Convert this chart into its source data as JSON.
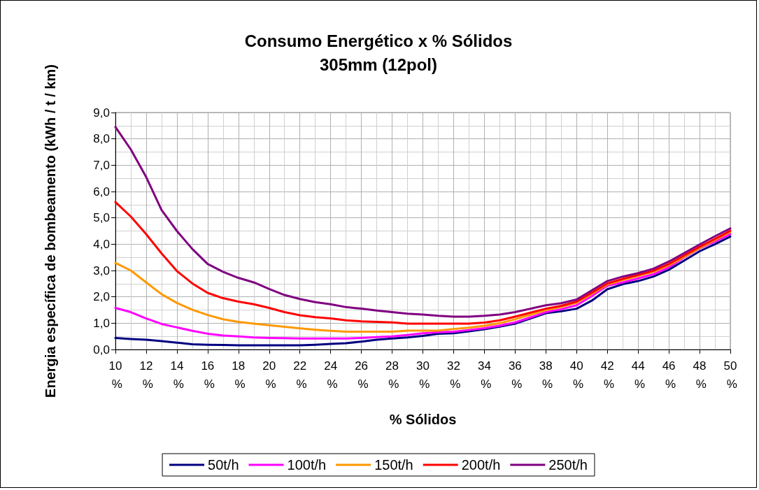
{
  "chart_data": {
    "type": "line",
    "title": "Consumo Energético x % Sólidos",
    "subtitle": "305mm (12pol)",
    "xlabel": "% Sólidos",
    "ylabel": "Energia específica de bombeamento (kWh / t / km)",
    "x": [
      10,
      11,
      12,
      13,
      14,
      15,
      16,
      17,
      18,
      19,
      20,
      21,
      22,
      23,
      24,
      25,
      26,
      27,
      28,
      29,
      30,
      31,
      32,
      33,
      34,
      35,
      36,
      37,
      38,
      39,
      40,
      41,
      42,
      43,
      44,
      45,
      46,
      47,
      48,
      49,
      50
    ],
    "series": [
      {
        "name": "50t/h",
        "color": "#000080",
        "values": [
          0.44,
          0.4,
          0.37,
          0.32,
          0.26,
          0.2,
          0.18,
          0.17,
          0.16,
          0.16,
          0.16,
          0.16,
          0.16,
          0.18,
          0.21,
          0.24,
          0.3,
          0.37,
          0.42,
          0.46,
          0.52,
          0.6,
          0.62,
          0.69,
          0.77,
          0.87,
          0.98,
          1.18,
          1.38,
          1.45,
          1.55,
          1.86,
          2.29,
          2.48,
          2.6,
          2.77,
          3.03,
          3.38,
          3.73,
          4.0,
          4.29
        ]
      },
      {
        "name": "100t/h",
        "color": "#ff00ff",
        "values": [
          1.58,
          1.42,
          1.18,
          0.97,
          0.84,
          0.71,
          0.6,
          0.53,
          0.5,
          0.46,
          0.44,
          0.43,
          0.42,
          0.42,
          0.42,
          0.42,
          0.44,
          0.47,
          0.5,
          0.55,
          0.62,
          0.66,
          0.68,
          0.74,
          0.81,
          0.91,
          1.03,
          1.22,
          1.42,
          1.53,
          1.68,
          2.03,
          2.42,
          2.55,
          2.7,
          2.86,
          3.12,
          3.5,
          3.84,
          4.1,
          4.38
        ]
      },
      {
        "name": "150t/h",
        "color": "#ff9900",
        "values": [
          3.29,
          3.0,
          2.55,
          2.1,
          1.77,
          1.51,
          1.31,
          1.15,
          1.05,
          0.98,
          0.92,
          0.86,
          0.8,
          0.75,
          0.71,
          0.68,
          0.68,
          0.68,
          0.68,
          0.72,
          0.72,
          0.72,
          0.78,
          0.83,
          0.9,
          1.0,
          1.15,
          1.32,
          1.5,
          1.62,
          1.78,
          2.12,
          2.47,
          2.64,
          2.79,
          2.95,
          3.2,
          3.52,
          3.85,
          4.16,
          4.47
        ]
      },
      {
        "name": "200t/h",
        "color": "#ff0000",
        "values": [
          5.6,
          5.05,
          4.38,
          3.65,
          2.98,
          2.51,
          2.15,
          1.95,
          1.82,
          1.72,
          1.58,
          1.42,
          1.3,
          1.23,
          1.18,
          1.11,
          1.07,
          1.05,
          1.03,
          0.98,
          0.98,
          0.98,
          0.98,
          0.98,
          1.02,
          1.11,
          1.25,
          1.4,
          1.55,
          1.66,
          1.82,
          2.16,
          2.51,
          2.68,
          2.83,
          2.99,
          3.25,
          3.57,
          3.9,
          4.2,
          4.51
        ]
      },
      {
        "name": "250t/h",
        "color": "#800080",
        "values": [
          8.45,
          7.6,
          6.55,
          5.3,
          4.5,
          3.82,
          3.25,
          2.95,
          2.72,
          2.55,
          2.3,
          2.07,
          1.92,
          1.8,
          1.72,
          1.61,
          1.55,
          1.48,
          1.42,
          1.36,
          1.33,
          1.28,
          1.25,
          1.25,
          1.28,
          1.33,
          1.42,
          1.55,
          1.68,
          1.76,
          1.9,
          2.25,
          2.6,
          2.77,
          2.9,
          3.07,
          3.34,
          3.66,
          3.99,
          4.3,
          4.6
        ]
      }
    ],
    "xlim": [
      10,
      50
    ],
    "xticks": [
      {
        "value": 10,
        "label": "10 %"
      },
      {
        "value": 12,
        "label": "12 %"
      },
      {
        "value": 14,
        "label": "14 %"
      },
      {
        "value": 16,
        "label": "16 %"
      },
      {
        "value": 18,
        "label": "18 %"
      },
      {
        "value": 20,
        "label": "20 %"
      },
      {
        "value": 22,
        "label": "22 %"
      },
      {
        "value": 24,
        "label": "24 %"
      },
      {
        "value": 26,
        "label": "26 %"
      },
      {
        "value": 28,
        "label": "28 %"
      },
      {
        "value": 30,
        "label": "30 %"
      },
      {
        "value": 32,
        "label": "32 %"
      },
      {
        "value": 34,
        "label": "34 %"
      },
      {
        "value": 36,
        "label": "36 %"
      },
      {
        "value": 38,
        "label": "38 %"
      },
      {
        "value": 40,
        "label": "40 %"
      },
      {
        "value": 42,
        "label": "42 %"
      },
      {
        "value": 44,
        "label": "44 %"
      },
      {
        "value": 46,
        "label": "46 %"
      },
      {
        "value": 48,
        "label": "48 %"
      },
      {
        "value": 50,
        "label": "50 %"
      }
    ],
    "ylim": [
      0,
      9
    ],
    "yticks": [
      {
        "value": 0,
        "label": "0,0"
      },
      {
        "value": 1,
        "label": "1,0"
      },
      {
        "value": 2,
        "label": "2,0"
      },
      {
        "value": 3,
        "label": "3,0"
      },
      {
        "value": 4,
        "label": "4,0"
      },
      {
        "value": 5,
        "label": "5,0"
      },
      {
        "value": 6,
        "label": "6,0"
      },
      {
        "value": 7,
        "label": "7,0"
      },
      {
        "value": 8,
        "label": "8,0"
      },
      {
        "value": 9,
        "label": "9,0"
      }
    ],
    "grid": true,
    "legend": "bottom",
    "marker": "none",
    "line_style": "solid"
  }
}
